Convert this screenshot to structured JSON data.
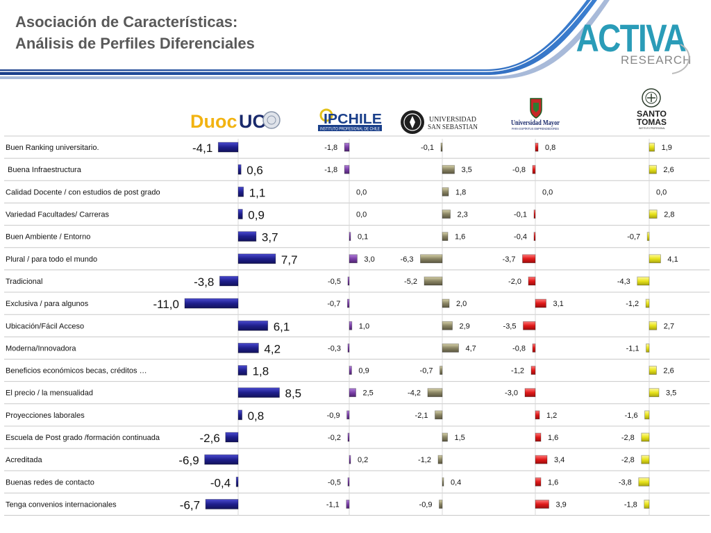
{
  "header": {
    "title_line1": "Asociación de Características:",
    "title_line2": "Análisis de Perfiles Diferenciales"
  },
  "brand": {
    "name_main": "ACTIVA",
    "name_sub": "RESEARCH",
    "color": "#2a9cb8"
  },
  "logos": {
    "duoc": {
      "part1": "Duoc",
      "part2": "UC"
    },
    "ipchile": {
      "main": "IPCHILE",
      "sub": "INSTITUTO PROFESIONAL DE CHILE"
    },
    "uss": {
      "line1": "UNIVERSIDAD",
      "line2": "SAN SEBASTIAN"
    },
    "umayor": {
      "line1": "Universidad Mayor",
      "line2": "PARA ESPÍRITUS EMPRENDEDORES"
    },
    "santotomas": {
      "line1": "SANTO",
      "line2": "TOMAS",
      "line3": "INSTITUTO PROFESIONAL"
    }
  },
  "colors": {
    "duoc": "#1f1f8c",
    "ipchile": "#7b3fa8",
    "uss": "#8a8564",
    "umayor": "#e01919",
    "santotomas": "#e8e31c"
  },
  "chart_data": {
    "type": "bar",
    "orientation": "horizontal-diverging",
    "categories": [
      "Buen Ranking universitario.",
      " Buena Infraestructura",
      "Calidad Docente / con estudios de post grado",
      "Variedad Facultades/ Carreras",
      "Buen Ambiente / Entorno",
      "Plural / para todo el mundo",
      "Tradicional",
      "Exclusiva / para algunos",
      "Ubicación/Fácil Acceso",
      "Moderna/Innovadora",
      "Beneficios económicos becas, créditos …",
      "El precio / la mensualidad",
      "Proyecciones laborales",
      "Escuela de Post grado /formación continuada",
      "Acreditada",
      "Buenas redes de contacto",
      "Tenga convenios internacionales"
    ],
    "series": [
      {
        "name": "Duoc UC",
        "values": [
          -4.1,
          0.6,
          1.1,
          0.9,
          3.7,
          7.7,
          -3.8,
          -11.0,
          6.1,
          4.2,
          1.8,
          8.5,
          0.8,
          -2.6,
          -6.9,
          -0.4,
          -6.7
        ],
        "labels": [
          "-4,1",
          "0,6",
          "1,1",
          "0,9",
          "3,7",
          "7,7",
          "-3,8",
          "-11,0",
          "6,1",
          "4,2",
          "1,8",
          "8,5",
          "0,8",
          "-2,6",
          "-6,9",
          "-0,4",
          "-6,7"
        ]
      },
      {
        "name": "IPCHILE",
        "values": [
          -1.8,
          -1.8,
          0.0,
          0.0,
          0.1,
          3.0,
          -0.5,
          -0.7,
          1.0,
          -0.3,
          0.9,
          2.5,
          -0.9,
          -0.2,
          0.2,
          -0.5,
          -1.1
        ],
        "labels": [
          "-1,8",
          "-1,8",
          "0,0",
          "0,0",
          "0,1",
          "3,0",
          "-0,5",
          "-0,7",
          "1,0",
          "-0,3",
          "0,9",
          "2,5",
          "-0,9",
          "-0,2",
          "0,2",
          "-0,5",
          "-1,1"
        ]
      },
      {
        "name": "Universidad San Sebastián",
        "values": [
          -0.1,
          3.5,
          1.8,
          2.3,
          1.6,
          -6.3,
          -5.2,
          2.0,
          2.9,
          4.7,
          -0.7,
          -4.2,
          -2.1,
          1.5,
          -1.2,
          0.4,
          -0.9
        ],
        "labels": [
          "-0,1",
          "3,5",
          "1,8",
          "2,3",
          "1,6",
          "-6,3",
          "-5,2",
          "2,0",
          "2,9",
          "4,7",
          "-0,7",
          "-4,2",
          "-2,1",
          "1,5",
          "-1,2",
          "0,4",
          "-0,9"
        ]
      },
      {
        "name": "Universidad Mayor",
        "values": [
          0.8,
          -0.8,
          0.0,
          -0.1,
          -0.4,
          -3.7,
          -2.0,
          3.1,
          -3.5,
          -0.8,
          -1.2,
          -3.0,
          1.2,
          1.6,
          3.4,
          1.6,
          3.9
        ],
        "labels": [
          "0,8",
          "-0,8",
          "0,0",
          "-0,1",
          "-0,4",
          "-3,7",
          "-2,0",
          "3,1",
          "-3,5",
          "-0,8",
          "-1,2",
          "-3,0",
          "1,2",
          "1,6",
          "3,4",
          "1,6",
          "3,9"
        ]
      },
      {
        "name": "Santo Tomás",
        "values": [
          1.9,
          2.6,
          0.0,
          2.8,
          -0.7,
          4.1,
          -4.3,
          -1.2,
          2.7,
          -1.1,
          2.6,
          3.5,
          -1.6,
          -2.8,
          -2.8,
          -3.8,
          -1.8
        ],
        "labels": [
          "1,9",
          "2,6",
          "0,0",
          "2,8",
          "-0,7",
          "4,1",
          "-4,3",
          "-1,2",
          "2,7",
          "-1,1",
          "2,6",
          "3,5",
          "-1,6",
          "-2,8",
          "-2,8",
          "-3,8",
          "-1,8"
        ]
      }
    ],
    "legend": "logos above columns",
    "grid": true
  }
}
